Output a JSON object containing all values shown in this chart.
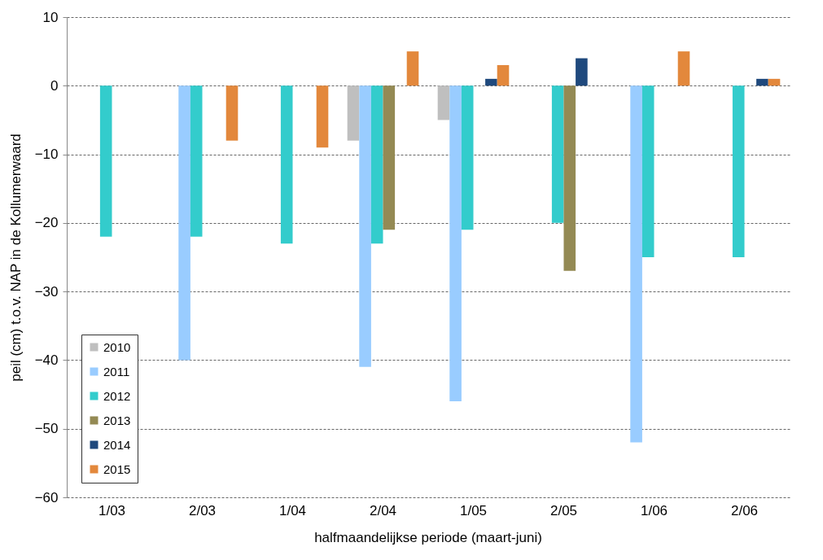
{
  "chart_data": {
    "type": "bar",
    "xlabel": "halfmaandelijkse periode (maart-juni)",
    "ylabel": "peil (cm) t.o.v. NAP in de Kollumerwaard",
    "categories": [
      "1/03",
      "2/03",
      "1/04",
      "2/04",
      "1/05",
      "2/05",
      "1/06",
      "2/06"
    ],
    "series": [
      {
        "name": "2010",
        "color": "#bfbfbf",
        "values": [
          null,
          null,
          null,
          -8,
          -5,
          null,
          null,
          null
        ]
      },
      {
        "name": "2011",
        "color": "#99ccff",
        "values": [
          null,
          -40,
          null,
          -41,
          -46,
          null,
          -52,
          null
        ]
      },
      {
        "name": "2012",
        "color": "#33cccc",
        "values": [
          -22,
          -22,
          -23,
          -23,
          -21,
          -20,
          -25,
          -25
        ]
      },
      {
        "name": "2013",
        "color": "#948a54",
        "values": [
          null,
          null,
          null,
          -21,
          null,
          -27,
          null,
          null
        ]
      },
      {
        "name": "2014",
        "color": "#1f497d",
        "values": [
          null,
          null,
          null,
          null,
          1,
          4,
          null,
          1
        ]
      },
      {
        "name": "2015",
        "color": "#e3883c",
        "values": [
          null,
          -8,
          -9,
          5,
          3,
          null,
          5,
          1
        ]
      }
    ],
    "ylim": [
      -60,
      10
    ],
    "yticks": [
      -60,
      -50,
      -40,
      -30,
      -20,
      -10,
      0,
      10
    ],
    "grid": "y",
    "legend": "bottom left"
  }
}
